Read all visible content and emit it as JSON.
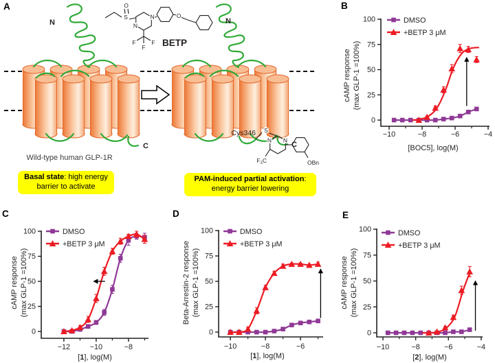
{
  "labels": {
    "a": "A",
    "b": "B",
    "c": "C",
    "d": "D",
    "e": "E"
  },
  "panel_a": {
    "n_terminus": "N",
    "c_terminus": "C",
    "betp_name": "BETP",
    "cys_label": "Cys346",
    "caption": "Wild-type human GLP-1R",
    "basal_box": {
      "bold": "Basal state",
      "rest": ": high energy",
      "line2": "barrier to activate"
    },
    "pam_box": {
      "bold": "PAM-induced partial activation",
      "rest": ":",
      "line2": "energy barrier lowering"
    },
    "atoms": {
      "oxygen": "O",
      "sulfur": "S",
      "nitrogen": "N",
      "fluorine": "F",
      "obn": "OBn",
      "f3c": {
        "f": "F",
        "three": "3",
        "c": "C"
      }
    }
  },
  "colors": {
    "dmso": "#8f3996",
    "betp": "#ec1c24",
    "axis": "#231f20",
    "green": "#2faa37",
    "orange": "#e2672a",
    "yellow": "#ffff00"
  },
  "chart_data": [
    {
      "panel": "B",
      "type": "scatter",
      "xlabel": {
        "pre": "[",
        "compound": "BOC5",
        "compound_bold": false,
        "post": "], log(M)"
      },
      "ylabel": [
        "cAMP response",
        "(max GLP-1 =100%)"
      ],
      "xlim": [
        -10.5,
        -4.2
      ],
      "ylim": [
        0,
        100
      ],
      "xticks": [
        -10,
        -8,
        -6,
        -4
      ],
      "xminor": [
        -9,
        -7,
        -5
      ],
      "yticks": [
        0,
        25,
        50,
        75,
        100
      ],
      "legend_position": "top-left",
      "series": [
        {
          "name": "DMSO",
          "color": "#8f3996",
          "marker": "square",
          "x": [
            -9.7,
            -9.2,
            -8.7,
            -8.2,
            -7.7,
            -7.2,
            -6.7,
            -6.2,
            -5.7,
            -5.2,
            -4.7
          ],
          "y": [
            0,
            0,
            0,
            0,
            0,
            0,
            1,
            2,
            4,
            8,
            11
          ],
          "err": [
            0,
            0,
            0,
            0,
            0,
            0,
            0,
            0,
            1,
            1,
            1.5
          ]
        },
        {
          "name": "+BETP 3 μM",
          "color": "#ec1c24",
          "marker": "triangle",
          "x": [
            -8.2,
            -7.7,
            -7.2,
            -6.7,
            -6.2,
            -5.7,
            -5.2,
            -4.7
          ],
          "y": [
            0,
            3,
            12,
            30,
            51,
            71,
            70,
            60
          ],
          "err": [
            0,
            1,
            2,
            3,
            4,
            4,
            3,
            3
          ],
          "curve_x": [
            -8.6,
            -8.1,
            -7.6,
            -7.1,
            -6.6,
            -6.1,
            -5.6,
            -5.1,
            -4.55
          ],
          "curve_y": [
            0,
            1,
            4,
            12,
            29,
            52,
            66,
            71,
            72
          ]
        }
      ],
      "arrow": {
        "dir": "up",
        "x": -5.3,
        "y_from": 14,
        "y_to": 62
      }
    },
    {
      "panel": "C",
      "type": "scatter",
      "xlabel": {
        "pre": "[",
        "compound": "1",
        "compound_bold": true,
        "post": "], log(M)"
      },
      "ylabel": [
        "cAMP response",
        "(max GLP-1 =100%)"
      ],
      "xlim": [
        -13.4,
        -6.6
      ],
      "ylim": [
        0,
        100
      ],
      "xticks": [
        -12,
        -10,
        -8
      ],
      "xminor": [
        -11,
        -9,
        -7
      ],
      "yticks": [
        0,
        25,
        50,
        75,
        100
      ],
      "legend_position": "top-left",
      "series": [
        {
          "name": "DMSO",
          "color": "#8f3996",
          "marker": "square",
          "x": [
            -12,
            -11.5,
            -11,
            -10.5,
            -10,
            -9.5,
            -9,
            -8.5,
            -8,
            -7.5,
            -7
          ],
          "y": [
            0,
            0,
            2,
            5,
            9,
            19,
            42,
            73,
            91,
            95,
            94
          ],
          "err": [
            1,
            1,
            1,
            1,
            2,
            3,
            4,
            4,
            5,
            3,
            4
          ]
        },
        {
          "name": "+BETP 3 μM",
          "color": "#ec1c24",
          "marker": "triangle",
          "x": [
            -12,
            -11.5,
            -11,
            -10.5,
            -10,
            -9.5,
            -9,
            -8.5,
            -8,
            -7.5,
            -7
          ],
          "y": [
            0,
            1,
            4,
            12,
            33,
            60,
            80,
            90,
            95,
            97,
            92
          ],
          "err": [
            1,
            1,
            2,
            3,
            4,
            4,
            3,
            3,
            2,
            3,
            4
          ]
        }
      ],
      "arrow": {
        "dir": "left",
        "y": 50,
        "x_from": -9.45,
        "x_to": -10.15
      }
    },
    {
      "panel": "D",
      "type": "scatter",
      "xlabel": {
        "pre": "[",
        "compound": "1",
        "compound_bold": true,
        "post": "], log(M)"
      },
      "ylabel": [
        "Beta-Arrestin-2 response",
        "(max GLP-1 =100%)"
      ],
      "xlim": [
        -10.67,
        -4.7
      ],
      "ylim": [
        0,
        100
      ],
      "xticks": [
        -10,
        -8,
        -6
      ],
      "xminor": [
        -9,
        -7,
        -5
      ],
      "yticks": [
        0,
        25,
        50,
        75,
        100
      ],
      "legend_position": "top-left",
      "series": [
        {
          "name": "DMSO",
          "color": "#8f3996",
          "marker": "square",
          "x": [
            -10,
            -9.5,
            -9,
            -8.5,
            -8,
            -7.5,
            -7,
            -6.5,
            -6,
            -5.5,
            -5
          ],
          "y": [
            0,
            0,
            0,
            0,
            0,
            1,
            3,
            7,
            9,
            10,
            11
          ],
          "err": [
            1,
            1,
            1,
            1,
            1,
            1,
            1,
            1,
            1,
            1,
            1
          ]
        },
        {
          "name": "+BETP 3 μM",
          "color": "#ec1c24",
          "marker": "triangle",
          "x": [
            -10,
            -9.5,
            -9,
            -8.5,
            -8,
            -7.5,
            -7,
            -6.5,
            -6,
            -5.5,
            -5
          ],
          "y": [
            0,
            0,
            3,
            21,
            44,
            58,
            65,
            67,
            67,
            66,
            67
          ],
          "err": [
            0,
            1,
            2,
            3,
            2,
            2,
            2,
            1,
            1,
            1,
            2
          ]
        }
      ],
      "arrow": {
        "dir": "up",
        "x": -4.85,
        "y_from": 14,
        "y_to": 62
      }
    },
    {
      "panel": "E",
      "type": "scatter",
      "xlabel": {
        "pre": "[",
        "compound": "2",
        "compound_bold": true,
        "post": "], log(M)"
      },
      "ylabel": [
        "cAMP response",
        "(max GLP-1 =100%)"
      ],
      "xlim": [
        -10.38,
        -4.0
      ],
      "ylim": [
        0,
        100
      ],
      "xticks": [
        -10,
        -8,
        -6,
        -4
      ],
      "xminor": [
        -9,
        -7,
        -5
      ],
      "yticks": [
        0,
        25,
        50,
        75,
        100
      ],
      "legend_position": "top-left",
      "series": [
        {
          "name": "DMSO",
          "color": "#8f3996",
          "marker": "square",
          "x": [
            -9.7,
            -9.2,
            -8.7,
            -8.2,
            -7.7,
            -7.2,
            -6.7,
            -6.2,
            -5.7,
            -5.2,
            -4.7
          ],
          "y": [
            0,
            0,
            0,
            0,
            0,
            0,
            0,
            0,
            1,
            1,
            3
          ],
          "err": [
            0,
            0,
            0,
            0,
            0,
            0,
            0,
            0,
            0,
            1,
            1
          ]
        },
        {
          "name": "+BETP 3 μM",
          "color": "#ec1c24",
          "marker": "triangle",
          "x": [
            -7.2,
            -6.7,
            -6.2,
            -5.7,
            -5.2,
            -4.7
          ],
          "y": [
            0,
            1,
            5,
            15,
            41,
            59
          ],
          "err": [
            0,
            0,
            1,
            2,
            4,
            5
          ],
          "curve_x": [
            -7.6,
            -7.1,
            -6.6,
            -6.1,
            -5.6,
            -5.1,
            -4.65
          ],
          "curve_y": [
            0,
            0,
            1,
            5,
            16,
            41,
            60
          ]
        }
      ],
      "arrow": {
        "dir": "up",
        "x": -4.35,
        "y_from": 2,
        "y_to": 50
      }
    }
  ]
}
